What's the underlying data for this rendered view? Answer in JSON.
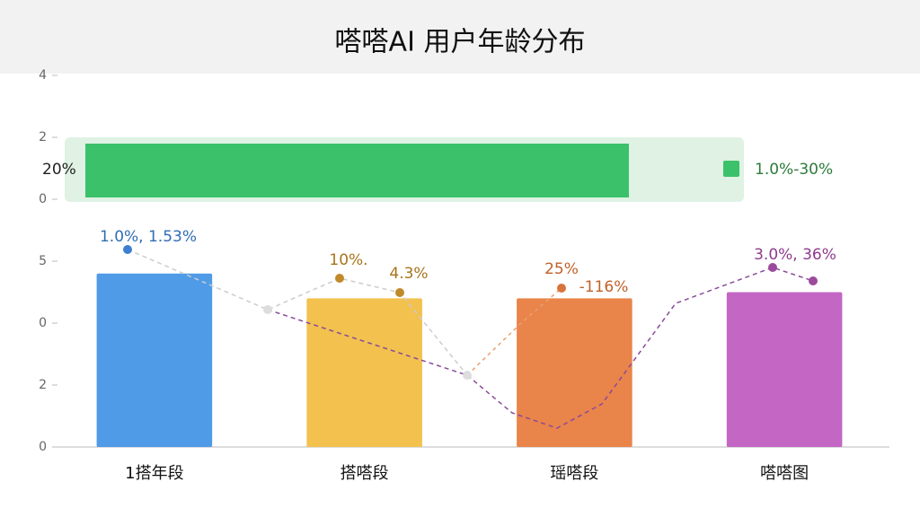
{
  "chart_data": {
    "type": "bar",
    "title": "嗒嗒AI 用户年龄分布",
    "categories": [
      "1搭年段",
      "搭嗒段",
      "瑶嗒段",
      "嗒嗒图"
    ],
    "values": [
      2.8,
      2.4,
      2.4,
      2.5
    ],
    "colors": [
      "#4f9be8",
      "#f2c14e",
      "#e9844a",
      "#c466c4"
    ],
    "ylim": [
      0,
      6
    ],
    "yticks": [
      {
        "value": 0,
        "label": "0"
      },
      {
        "value": 1,
        "label": "2"
      },
      {
        "value": 2,
        "label": "0"
      },
      {
        "value": 3,
        "label": "5"
      },
      {
        "value": 4,
        "label": "0"
      },
      {
        "value": 5,
        "label": "2"
      },
      {
        "value": 6,
        "label": "4"
      }
    ],
    "banner": {
      "left_label": "20%",
      "legend_label": "1.0%-30%"
    },
    "annotations": [
      "1.0%, 1.53%",
      "10%.",
      "4.3%",
      "25%",
      "-116%",
      "3.0%, 36%"
    ]
  }
}
